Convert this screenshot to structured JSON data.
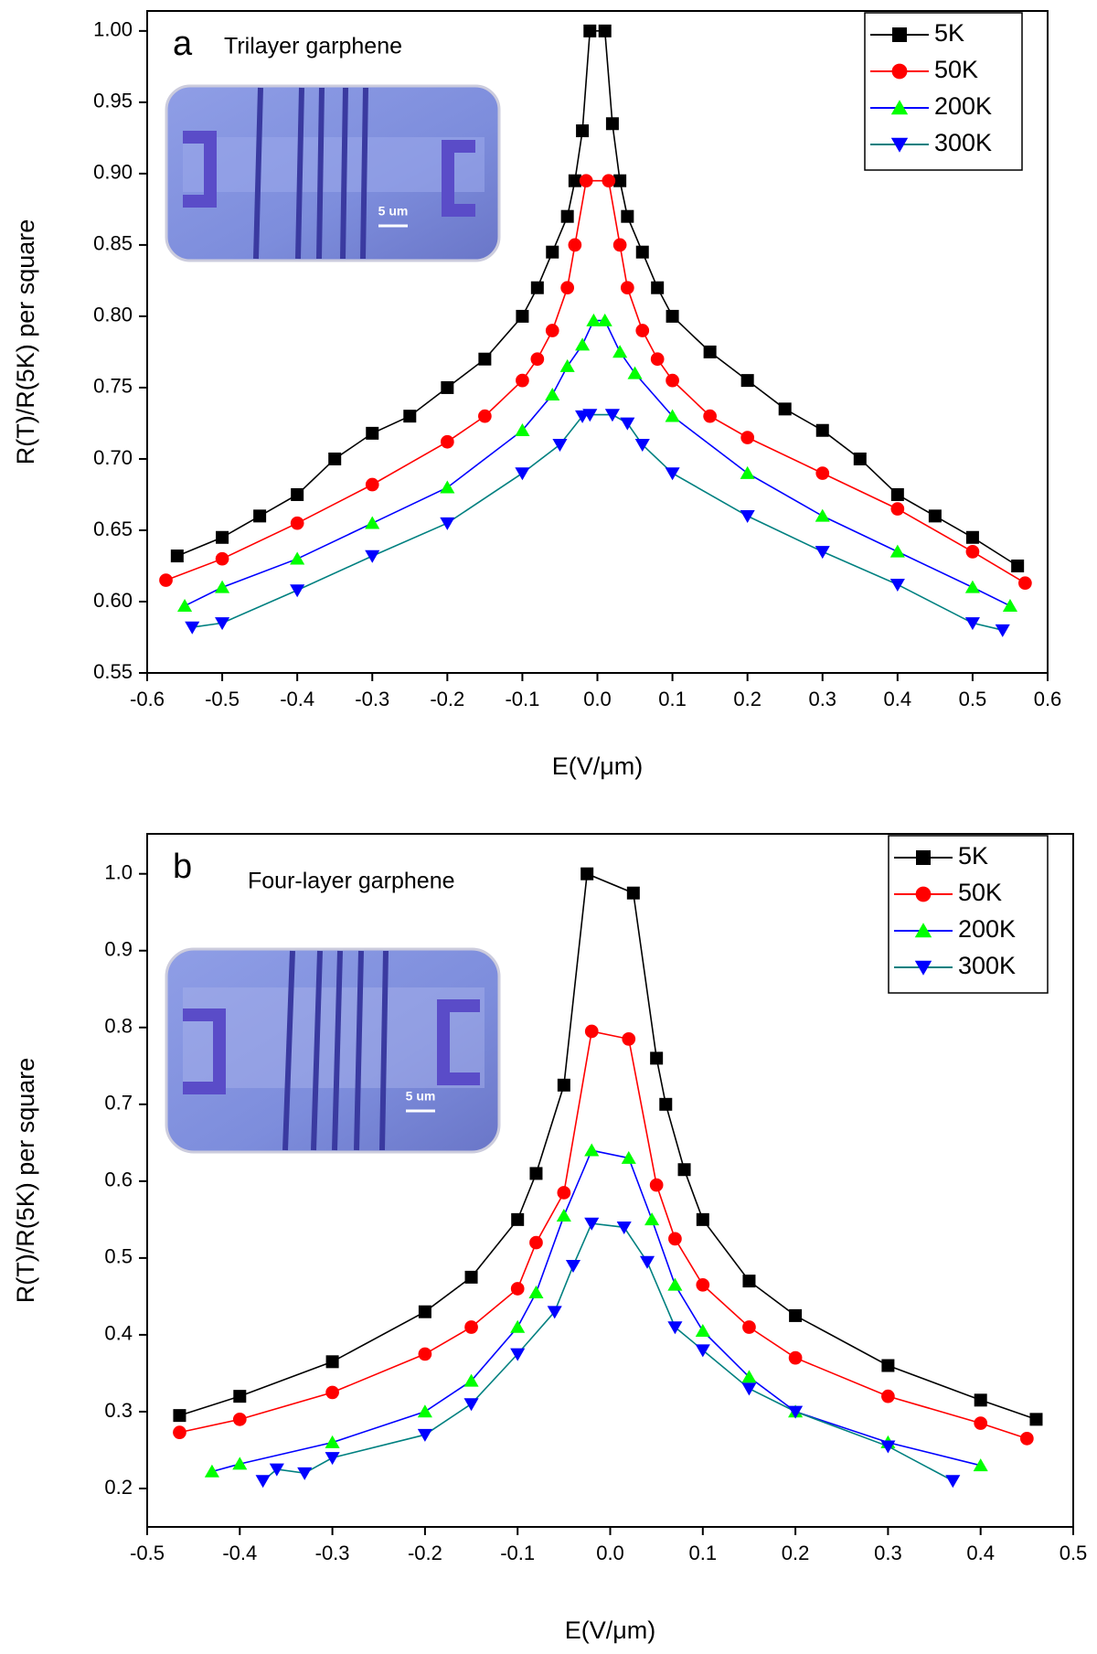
{
  "chart_data": [
    {
      "type": "line",
      "panel_label": "a",
      "subtitle": "Trilayer garphene",
      "inset_label": "5 um",
      "x_label": "E(V/μm)",
      "y_label": "R(T)/R(5K) per square",
      "legend": "upper right",
      "xlim": [
        -0.6,
        0.6
      ],
      "ylim": [
        0.55,
        1.014
      ],
      "xticks": [
        -0.6,
        -0.5,
        -0.4,
        -0.3,
        -0.2,
        -0.1,
        {
          "value": 0,
          "label": "0.0"
        },
        0.1,
        0.2,
        0.3,
        0.4,
        0.5,
        0.6
      ],
      "yticks": [
        0.55,
        {
          "value": 0.6,
          "label": "0.60"
        },
        0.65,
        {
          "value": 0.7,
          "label": "0.70"
        },
        0.75,
        {
          "value": 0.8,
          "label": "0.80"
        },
        0.85,
        {
          "value": 0.9,
          "label": "0.90"
        },
        0.95,
        {
          "value": 1,
          "label": "1.00"
        }
      ],
      "series": [
        {
          "name": "5K",
          "color": "#000000",
          "line_color": "#000000",
          "marker": "square",
          "x": [
            -0.56,
            -0.5,
            -0.45,
            -0.4,
            -0.35,
            -0.3,
            -0.25,
            -0.2,
            -0.15,
            -0.1,
            -0.08,
            -0.06,
            -0.04,
            -0.03,
            -0.02,
            -0.01,
            0.01,
            0.02,
            0.03,
            0.04,
            0.06,
            0.08,
            0.1,
            0.15,
            0.2,
            0.25,
            0.3,
            0.35,
            0.4,
            0.45,
            0.5,
            0.56
          ],
          "values": [
            0.632,
            0.645,
            0.66,
            0.675,
            0.7,
            0.718,
            0.73,
            0.75,
            0.77,
            0.8,
            0.82,
            0.845,
            0.87,
            0.895,
            0.93,
            1.0,
            1.0,
            0.935,
            0.895,
            0.87,
            0.845,
            0.82,
            0.8,
            0.775,
            0.755,
            0.735,
            0.72,
            0.7,
            0.675,
            0.66,
            0.645,
            0.625
          ]
        },
        {
          "name": "50K",
          "color": "#ff0000",
          "line_color": "#ff0000",
          "marker": "circle",
          "x": [
            -0.575,
            -0.5,
            -0.4,
            -0.3,
            -0.2,
            -0.15,
            -0.1,
            -0.08,
            -0.06,
            -0.04,
            -0.03,
            -0.015,
            0.015,
            0.03,
            0.04,
            0.06,
            0.08,
            0.1,
            0.15,
            0.2,
            0.3,
            0.4,
            0.5,
            0.57
          ],
          "values": [
            0.615,
            0.63,
            0.655,
            0.682,
            0.712,
            0.73,
            0.755,
            0.77,
            0.79,
            0.82,
            0.85,
            0.895,
            0.895,
            0.85,
            0.82,
            0.79,
            0.77,
            0.755,
            0.73,
            0.715,
            0.69,
            0.665,
            0.635,
            0.613
          ]
        },
        {
          "name": "200K",
          "color": "#00ff00",
          "line_color": "#0000ff",
          "marker": "triangle-up",
          "x": [
            -0.55,
            -0.5,
            -0.4,
            -0.3,
            -0.2,
            -0.1,
            -0.06,
            -0.04,
            -0.02,
            -0.005,
            0.01,
            0.03,
            0.05,
            0.1,
            0.2,
            0.3,
            0.4,
            0.5,
            0.55
          ],
          "values": [
            0.597,
            0.61,
            0.63,
            0.655,
            0.68,
            0.72,
            0.745,
            0.765,
            0.78,
            0.797,
            0.797,
            0.775,
            0.76,
            0.73,
            0.69,
            0.66,
            0.635,
            0.61,
            0.597
          ]
        },
        {
          "name": "300K",
          "color": "#0000ff",
          "line_color": "#008080",
          "marker": "triangle-down",
          "x": [
            -0.54,
            -0.5,
            -0.4,
            -0.3,
            -0.2,
            -0.1,
            -0.05,
            -0.02,
            -0.01,
            0.02,
            0.04,
            0.06,
            0.1,
            0.2,
            0.3,
            0.4,
            0.5,
            0.54
          ],
          "values": [
            0.582,
            0.585,
            0.608,
            0.632,
            0.655,
            0.69,
            0.71,
            0.73,
            0.731,
            0.731,
            0.725,
            0.71,
            0.69,
            0.66,
            0.635,
            0.612,
            0.585,
            0.58
          ]
        }
      ]
    },
    {
      "type": "line",
      "panel_label": "b",
      "subtitle": "Four-layer garphene",
      "inset_label": "5 um",
      "x_label": "E(V/μm)",
      "y_label": "R(T)/R(5K) per square",
      "legend": "upper right",
      "xlim": [
        -0.5,
        0.5
      ],
      "ylim": [
        0.15,
        1.052
      ],
      "xticks": [
        -0.5,
        -0.4,
        -0.3,
        -0.2,
        -0.1,
        {
          "value": 0,
          "label": "0.0"
        },
        0.1,
        0.2,
        0.3,
        0.4,
        0.5
      ],
      "yticks": [
        0.2,
        0.3,
        0.4,
        0.5,
        0.6,
        0.7,
        0.8,
        0.9,
        {
          "value": 1,
          "label": "1.0"
        }
      ],
      "series": [
        {
          "name": "5K",
          "color": "#000000",
          "line_color": "#000000",
          "marker": "square",
          "x": [
            -0.465,
            -0.4,
            -0.3,
            -0.2,
            -0.15,
            -0.1,
            -0.08,
            -0.05,
            -0.025,
            0.025,
            0.05,
            0.06,
            0.08,
            0.1,
            0.15,
            0.2,
            0.3,
            0.4,
            0.46
          ],
          "values": [
            0.295,
            0.32,
            0.365,
            0.43,
            0.475,
            0.55,
            0.61,
            0.725,
            1.0,
            0.975,
            0.76,
            0.7,
            0.615,
            0.55,
            0.47,
            0.425,
            0.36,
            0.315,
            0.29
          ]
        },
        {
          "name": "50K",
          "color": "#ff0000",
          "line_color": "#ff0000",
          "marker": "circle",
          "x": [
            -0.465,
            -0.4,
            -0.3,
            -0.2,
            -0.15,
            -0.1,
            -0.08,
            -0.05,
            -0.02,
            0.02,
            0.05,
            0.07,
            0.1,
            0.15,
            0.2,
            0.3,
            0.4,
            0.45
          ],
          "values": [
            0.273,
            0.29,
            0.325,
            0.375,
            0.41,
            0.46,
            0.52,
            0.585,
            0.795,
            0.785,
            0.595,
            0.525,
            0.465,
            0.41,
            0.37,
            0.32,
            0.285,
            0.265
          ]
        },
        {
          "name": "200K",
          "color": "#00ff00",
          "line_color": "#0000ff",
          "marker": "triangle-up",
          "x": [
            -0.43,
            -0.4,
            -0.3,
            -0.2,
            -0.15,
            -0.1,
            -0.08,
            -0.05,
            -0.02,
            0.02,
            0.045,
            0.07,
            0.1,
            0.15,
            0.2,
            0.3,
            0.4
          ],
          "values": [
            0.222,
            0.232,
            0.26,
            0.3,
            0.34,
            0.41,
            0.455,
            0.555,
            0.64,
            0.63,
            0.55,
            0.465,
            0.405,
            0.345,
            0.3,
            0.26,
            0.23
          ]
        },
        {
          "name": "300K",
          "color": "#0000ff",
          "line_color": "#008080",
          "marker": "triangle-down",
          "x": [
            -0.375,
            -0.36,
            -0.33,
            -0.3,
            -0.2,
            -0.15,
            -0.1,
            -0.06,
            -0.04,
            -0.02,
            0.015,
            0.04,
            0.07,
            0.1,
            0.15,
            0.2,
            0.3,
            0.37
          ],
          "values": [
            0.21,
            0.225,
            0.22,
            0.24,
            0.27,
            0.31,
            0.375,
            0.43,
            0.49,
            0.545,
            0.54,
            0.495,
            0.41,
            0.38,
            0.33,
            0.3,
            0.255,
            0.21
          ]
        }
      ]
    }
  ]
}
